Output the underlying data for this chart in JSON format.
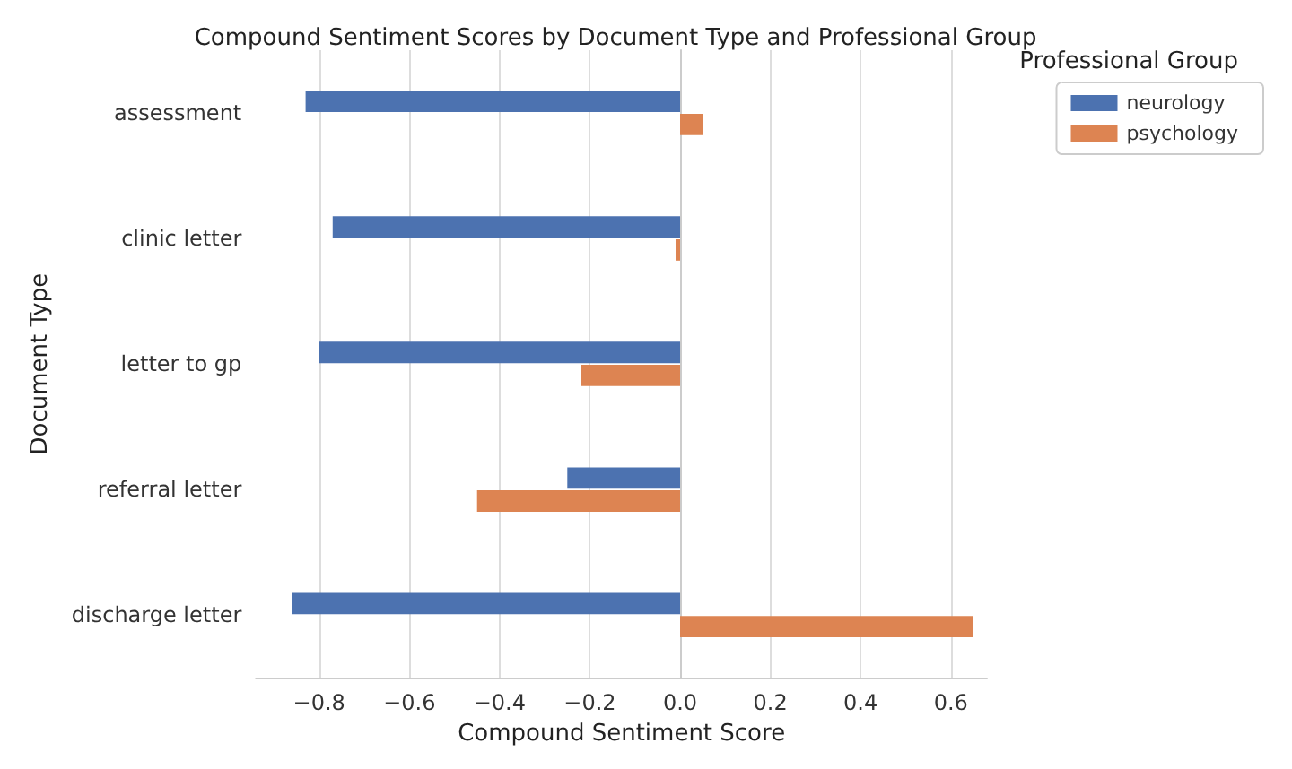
{
  "chart_data": {
    "type": "bar",
    "orientation": "horizontal",
    "title": "Compound Sentiment Scores by Document Type and Professional Group",
    "xlabel": "Compound Sentiment Score",
    "ylabel": "Document Type",
    "legend_title": "Professional Group",
    "legend": "top right",
    "grid": "x",
    "categories": [
      "assessment",
      "clinic letter",
      "letter to gp",
      "referral letter",
      "discharge letter"
    ],
    "series": [
      {
        "name": "neurology",
        "color": "#4c72b0",
        "values": [
          -0.83,
          -0.77,
          -0.8,
          -0.25,
          -0.86
        ]
      },
      {
        "name": "psychology",
        "color": "#dd8452",
        "values": [
          0.05,
          -0.01,
          -0.22,
          -0.45,
          0.65
        ]
      }
    ],
    "xlim": [
      -0.94,
      0.68
    ],
    "xticks": [
      {
        "value": -0.8,
        "label": "−0.8"
      },
      {
        "value": -0.6,
        "label": "−0.6"
      },
      {
        "value": -0.4,
        "label": "−0.4"
      },
      {
        "value": -0.2,
        "label": "−0.2"
      },
      {
        "value": 0,
        "label": "0.0"
      },
      {
        "value": 0.2,
        "label": "0.2"
      },
      {
        "value": 0.4,
        "label": "0.4"
      },
      {
        "value": 0.6,
        "label": "0.6"
      }
    ]
  }
}
